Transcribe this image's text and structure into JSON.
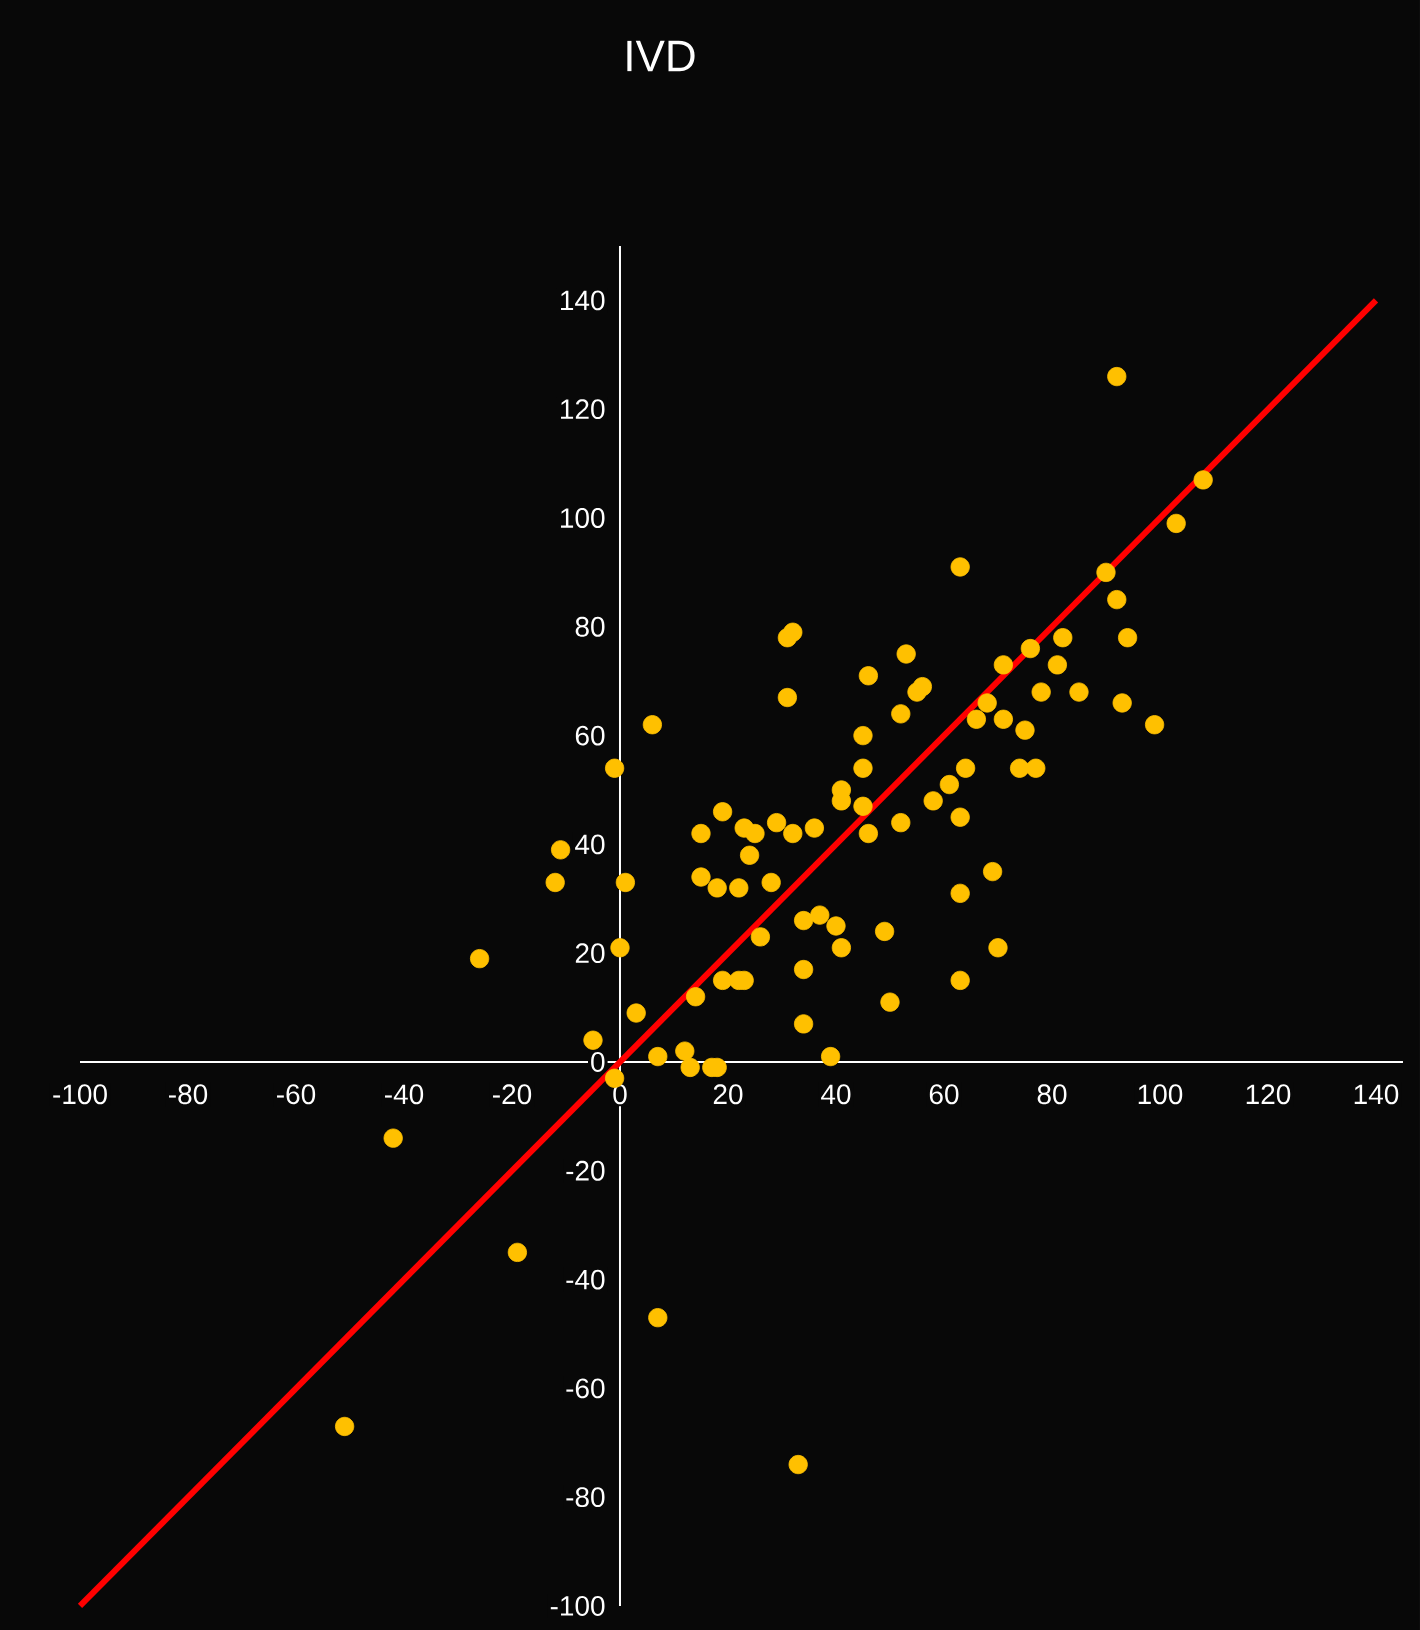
{
  "chart_data": {
    "type": "scatter",
    "title": "IVD",
    "xlim": [
      -100,
      145
    ],
    "ylim": [
      -100,
      150
    ],
    "xticks": [
      -100,
      -80,
      -60,
      -40,
      -20,
      0,
      20,
      40,
      60,
      80,
      100,
      120,
      140
    ],
    "yticks": [
      -100,
      -80,
      -60,
      -40,
      -20,
      0,
      20,
      40,
      60,
      80,
      100,
      120,
      140
    ],
    "grid": false,
    "series": [
      {
        "marker": "circle",
        "color": "#ffc000",
        "x": [
          -42,
          -19,
          -51,
          7,
          33,
          -26,
          -12,
          -11,
          -5,
          -1,
          -1,
          1,
          0,
          3,
          6,
          7,
          12,
          13,
          17,
          18,
          14,
          15,
          15,
          18,
          19,
          19,
          22,
          22,
          23,
          24,
          25,
          23,
          26,
          28,
          29,
          31,
          31,
          32,
          32,
          34,
          34,
          34,
          36,
          37,
          39,
          40,
          41,
          41,
          41,
          45,
          45,
          46,
          46,
          45,
          49,
          50,
          52,
          53,
          55,
          56,
          52,
          58,
          61,
          63,
          63,
          63,
          63,
          64,
          66,
          68,
          69,
          70,
          71,
          71,
          74,
          75,
          77,
          76,
          78,
          81,
          82,
          85,
          90,
          92,
          92,
          93,
          94,
          99,
          103,
          108
        ],
        "values": [
          -14,
          -35,
          -67,
          -47,
          -74,
          19,
          33,
          39,
          4,
          54,
          -3,
          33,
          21,
          9,
          62,
          1,
          2,
          -1,
          -1,
          -1,
          12,
          34,
          42,
          32,
          46,
          15,
          15,
          32,
          43,
          38,
          42,
          15,
          23,
          33,
          44,
          67,
          78,
          79,
          42,
          26,
          17,
          7,
          43,
          27,
          1,
          25,
          21,
          50,
          48,
          54,
          60,
          71,
          42,
          47,
          24,
          11,
          64,
          75,
          68,
          69,
          44,
          48,
          51,
          91,
          31,
          45,
          15,
          54,
          63,
          66,
          35,
          21,
          73,
          63,
          54,
          61,
          54,
          76,
          68,
          73,
          78,
          68,
          90,
          85,
          126,
          66,
          78,
          62,
          99,
          107
        ]
      },
      {
        "type": "line",
        "marker": "none",
        "line_style": "solid",
        "color": "#ff0000",
        "x": [
          -100,
          140
        ],
        "values": [
          -100,
          140
        ]
      }
    ]
  }
}
